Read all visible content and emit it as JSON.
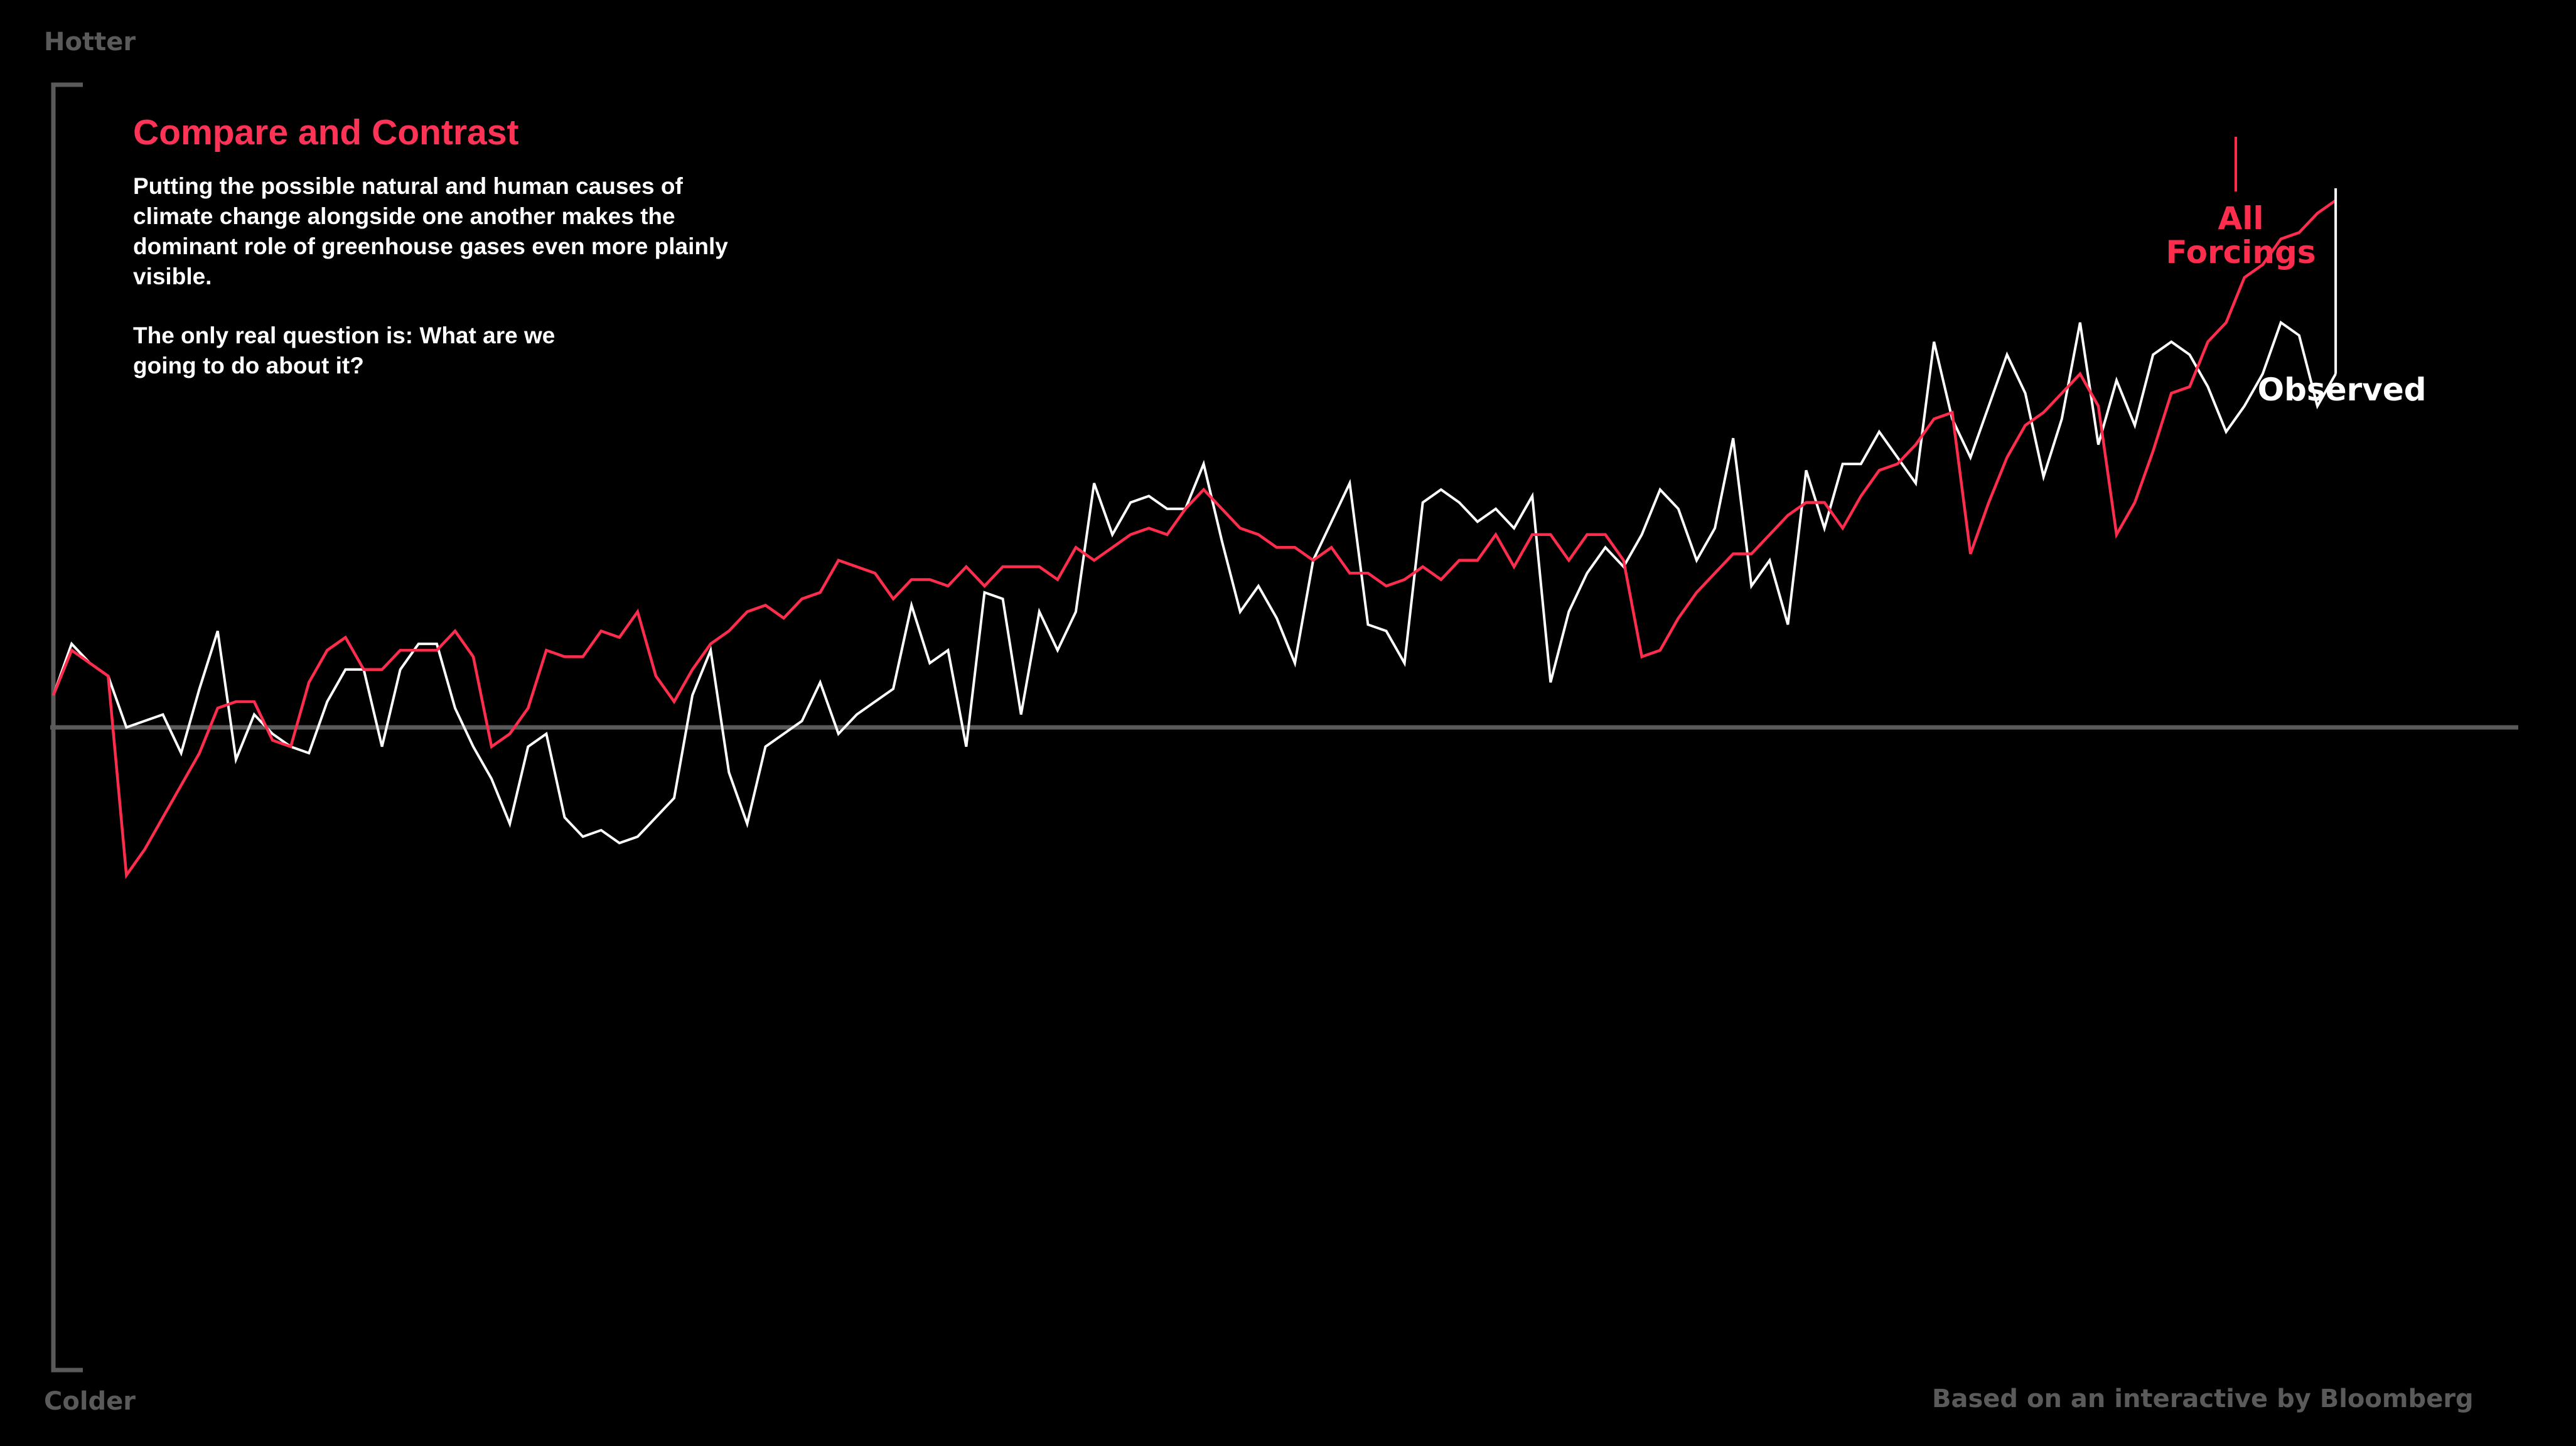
{
  "axis": {
    "top_label": "Hotter",
    "bottom_label": "Colder"
  },
  "intro": {
    "title": "Compare and Contrast",
    "paragraph1": "Putting the possible natural and human causes of climate change alongside one another makes the dominant role of greenhouse gases even more plainly visible.",
    "paragraph2": "The only real question is: What are we going to do about it?"
  },
  "source": "Based on an interactive by Bloomberg",
  "colors": {
    "background": "#000000",
    "all_forcings": "#ff2d4d",
    "observed": "#ffffff",
    "axis": "#5a5a5a",
    "title": "#ff3355"
  },
  "chart_data": {
    "type": "line",
    "x": [
      1880,
      1881,
      1882,
      1883,
      1884,
      1885,
      1886,
      1887,
      1888,
      1889,
      1890,
      1891,
      1892,
      1893,
      1894,
      1895,
      1896,
      1897,
      1898,
      1899,
      1900,
      1901,
      1902,
      1903,
      1904,
      1905,
      1906,
      1907,
      1908,
      1909,
      1910,
      1911,
      1912,
      1913,
      1914,
      1915,
      1916,
      1917,
      1918,
      1919,
      1920,
      1921,
      1922,
      1923,
      1924,
      1925,
      1926,
      1927,
      1928,
      1929,
      1930,
      1931,
      1932,
      1933,
      1934,
      1935,
      1936,
      1937,
      1938,
      1939,
      1940,
      1941,
      1942,
      1943,
      1944,
      1945,
      1946,
      1947,
      1948,
      1949,
      1950,
      1951,
      1952,
      1953,
      1954,
      1955,
      1956,
      1957,
      1958,
      1959,
      1960,
      1961,
      1962,
      1963,
      1964,
      1965,
      1966,
      1967,
      1968,
      1969,
      1970,
      1971,
      1972,
      1973,
      1974,
      1975,
      1976,
      1977,
      1978,
      1979,
      1980,
      1981,
      1982,
      1983,
      1984,
      1985,
      1986,
      1987,
      1988,
      1989,
      1990,
      1991,
      1992,
      1993,
      1994,
      1995,
      1996,
      1997,
      1998,
      1999,
      2000,
      2001,
      2002,
      2003,
      2004,
      2005
    ],
    "xlim": [
      1880,
      2015
    ],
    "ylim": [
      -1.0,
      1.0
    ],
    "baseline": 0,
    "series": [
      {
        "name": "All Forcings",
        "values": [
          0.05,
          0.12,
          0.1,
          0.08,
          -0.23,
          -0.19,
          -0.14,
          -0.09,
          -0.04,
          0.03,
          0.04,
          0.04,
          -0.02,
          -0.03,
          0.07,
          0.12,
          0.14,
          0.09,
          0.09,
          0.12,
          0.12,
          0.12,
          0.15,
          0.11,
          -0.03,
          -0.01,
          0.03,
          0.12,
          0.11,
          0.11,
          0.15,
          0.14,
          0.18,
          0.08,
          0.04,
          0.09,
          0.13,
          0.15,
          0.18,
          0.19,
          0.17,
          0.2,
          0.21,
          0.26,
          0.25,
          0.24,
          0.2,
          0.23,
          0.23,
          0.22,
          0.25,
          0.22,
          0.25,
          0.25,
          0.25,
          0.23,
          0.28,
          0.26,
          0.28,
          0.3,
          0.31,
          0.3,
          0.34,
          0.37,
          0.34,
          0.31,
          0.3,
          0.28,
          0.28,
          0.26,
          0.28,
          0.24,
          0.24,
          0.22,
          0.23,
          0.25,
          0.23,
          0.26,
          0.26,
          0.3,
          0.25,
          0.3,
          0.3,
          0.26,
          0.3,
          0.3,
          0.26,
          0.11,
          0.12,
          0.17,
          0.21,
          0.24,
          0.27,
          0.27,
          0.3,
          0.33,
          0.35,
          0.35,
          0.31,
          0.36,
          0.4,
          0.41,
          0.44,
          0.48,
          0.49,
          0.27,
          0.35,
          0.42,
          0.47,
          0.49,
          0.52,
          0.55,
          0.5,
          0.3,
          0.35,
          0.43,
          0.52,
          0.53,
          0.6,
          0.63,
          0.7,
          0.72,
          0.76,
          0.77,
          0.8,
          0.82
        ],
        "end_label": "All Forcings"
      },
      {
        "name": "Observed",
        "values": [
          0.05,
          0.13,
          0.1,
          0.08,
          0.0,
          0.01,
          0.02,
          -0.04,
          0.06,
          0.15,
          -0.05,
          0.02,
          -0.01,
          -0.03,
          -0.04,
          0.04,
          0.09,
          0.09,
          -0.03,
          0.09,
          0.13,
          0.13,
          0.03,
          -0.03,
          -0.08,
          -0.15,
          -0.03,
          -0.01,
          -0.14,
          -0.17,
          -0.16,
          -0.18,
          -0.17,
          -0.14,
          -0.11,
          0.05,
          0.12,
          -0.07,
          -0.15,
          -0.03,
          -0.01,
          0.01,
          0.07,
          -0.01,
          0.02,
          0.04,
          0.06,
          0.19,
          0.1,
          0.12,
          -0.03,
          0.21,
          0.2,
          0.02,
          0.18,
          0.12,
          0.18,
          0.38,
          0.3,
          0.35,
          0.36,
          0.34,
          0.34,
          0.41,
          0.29,
          0.18,
          0.22,
          0.17,
          0.1,
          0.26,
          0.32,
          0.38,
          0.16,
          0.15,
          0.1,
          0.35,
          0.37,
          0.35,
          0.32,
          0.34,
          0.31,
          0.36,
          0.07,
          0.18,
          0.24,
          0.28,
          0.25,
          0.3,
          0.37,
          0.34,
          0.26,
          0.31,
          0.45,
          0.22,
          0.26,
          0.16,
          0.4,
          0.31,
          0.41,
          0.41,
          0.46,
          0.42,
          0.38,
          0.6,
          0.48,
          0.42,
          0.5,
          0.58,
          0.52,
          0.39,
          0.48,
          0.63,
          0.44,
          0.54,
          0.47,
          0.58,
          0.6,
          0.58,
          0.53,
          0.46,
          0.5,
          0.55,
          0.63,
          0.61,
          0.5,
          0.55
        ],
        "end_label": "Observed"
      }
    ]
  }
}
